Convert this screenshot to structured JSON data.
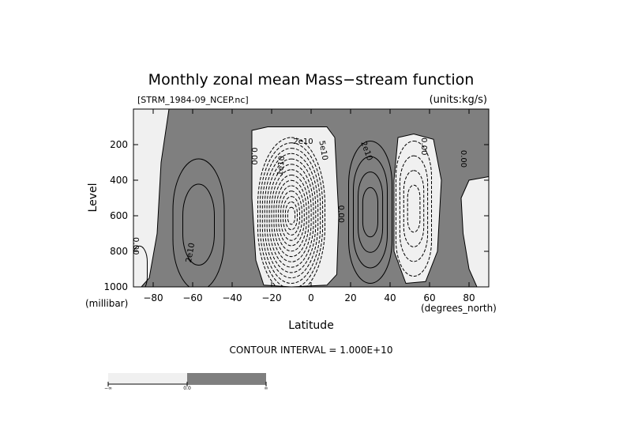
{
  "chart_data": {
    "type": "contour",
    "title": "Monthly zonal mean Mass−stream function",
    "file_label": "[STRM_1984-09_NCEP.nc]",
    "units_label": "(units:kg/s)",
    "xlabel": "Latitude",
    "x_units": "(degrees_north)",
    "ylabel": "Level",
    "y_units": "(millibar)",
    "xlim": [
      -90,
      90
    ],
    "ylim": [
      1000,
      0
    ],
    "x_ticks": [
      {
        "value": -80,
        "label": "−80"
      },
      {
        "value": -60,
        "label": "−60"
      },
      {
        "value": -40,
        "label": "−40"
      },
      {
        "value": -20,
        "label": "−20"
      },
      {
        "value": 0,
        "label": "0"
      },
      {
        "value": 20,
        "label": "20"
      },
      {
        "value": 40,
        "label": "40"
      },
      {
        "value": 60,
        "label": "60"
      },
      {
        "value": 80,
        "label": "80"
      }
    ],
    "y_ticks": [
      {
        "value": 200,
        "label": "200"
      },
      {
        "value": 400,
        "label": "400"
      },
      {
        "value": 600,
        "label": "600"
      },
      {
        "value": 800,
        "label": "800"
      },
      {
        "value": 1000,
        "label": "1000"
      }
    ],
    "contour_interval_label": "CONTOUR INTERVAL = 1.000E+10",
    "colors": {
      "negative": "#f0f0f0",
      "positive": "#7f7f7f",
      "line": "#000000"
    },
    "cells": [
      {
        "name": "antarctic-polar-positive",
        "sign": "positive",
        "center": [
          -87,
          900
        ],
        "rx": 4,
        "ry": 130,
        "levels": 1
      },
      {
        "name": "southern-ferrel-cell",
        "sign": "positive",
        "center": [
          -57,
          650
        ],
        "rx": 13,
        "ry": 370,
        "levels": 2
      },
      {
        "name": "southern-hadley-cell",
        "sign": "negative",
        "center": [
          -10,
          600
        ],
        "rx": 17,
        "ry": 440,
        "levels": 14
      },
      {
        "name": "northern-hadley-cell",
        "sign": "positive",
        "center": [
          30,
          580
        ],
        "rx": 11,
        "ry": 400,
        "levels": 4
      },
      {
        "name": "northern-ferrel-cell",
        "sign": "negative",
        "center": [
          52,
          560
        ],
        "rx": 9,
        "ry": 380,
        "levels": 4
      }
    ],
    "colorbar": {
      "segments": [
        {
          "color": "#f0f0f0",
          "from": "−∞",
          "to": "0.0"
        },
        {
          "color": "#7f7f7f",
          "from": "0.0",
          "to": "∞"
        }
      ],
      "labels": [
        "−∞",
        "0.0",
        "∞"
      ]
    },
    "contour_labels": [
      {
        "text": "0.00",
        "x": -90,
        "y": 770,
        "rotate": 90
      },
      {
        "text": "2e10",
        "x": -60,
        "y": 810,
        "rotate": -80
      },
      {
        "text": "0.00",
        "x": -30,
        "y": 265,
        "rotate": 90
      },
      {
        "text": "1e10",
        "x": -14,
        "y": 320,
        "rotate": -85
      },
      {
        "text": "2e10",
        "x": -4,
        "y": 195,
        "rotate": 0
      },
      {
        "text": "5e10",
        "x": 5,
        "y": 235,
        "rotate": 80
      },
      {
        "text": "0.00",
        "x": 14,
        "y": 590,
        "rotate": 90
      },
      {
        "text": "2e10",
        "x": 27,
        "y": 240,
        "rotate": 70
      },
      {
        "text": "0.00",
        "x": 56,
        "y": 210,
        "rotate": 90
      },
      {
        "text": "0.00",
        "x": 76,
        "y": 280,
        "rotate": 90
      }
    ]
  }
}
